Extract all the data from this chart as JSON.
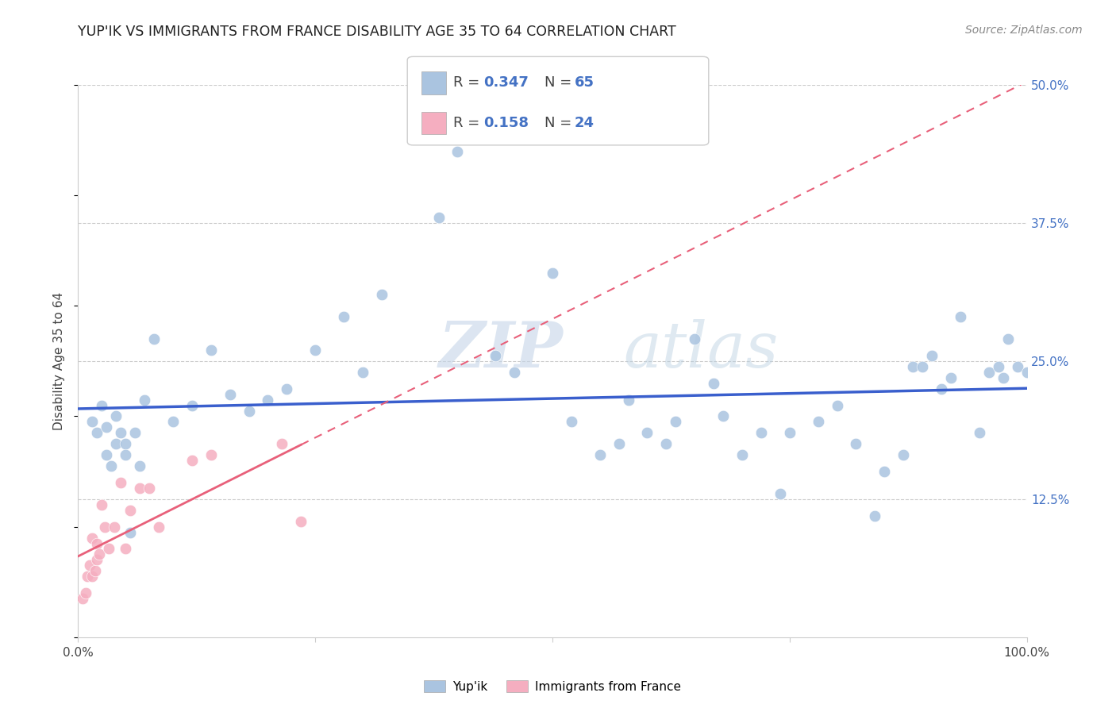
{
  "title": "YUP'IK VS IMMIGRANTS FROM FRANCE DISABILITY AGE 35 TO 64 CORRELATION CHART",
  "source": "Source: ZipAtlas.com",
  "ylabel": "Disability Age 35 to 64",
  "xlim": [
    0,
    1.0
  ],
  "ylim": [
    0,
    0.5
  ],
  "ytick_labels": [
    "12.5%",
    "25.0%",
    "37.5%",
    "50.0%"
  ],
  "ytick_values": [
    0.125,
    0.25,
    0.375,
    0.5
  ],
  "R_blue": "0.347",
  "N_blue": "65",
  "R_pink": "0.158",
  "N_pink": "24",
  "blue_color": "#aac4e0",
  "pink_color": "#f5aec0",
  "line_blue": "#3a5fcd",
  "line_pink": "#e8607a",
  "watermark_zip": "ZIP",
  "watermark_atlas": "atlas",
  "blue_x": [
    0.015,
    0.02,
    0.025,
    0.03,
    0.03,
    0.035,
    0.04,
    0.04,
    0.045,
    0.05,
    0.05,
    0.055,
    0.06,
    0.065,
    0.07,
    0.08,
    0.1,
    0.12,
    0.14,
    0.16,
    0.18,
    0.2,
    0.22,
    0.25,
    0.28,
    0.3,
    0.32,
    0.38,
    0.4,
    0.44,
    0.46,
    0.5,
    0.52,
    0.55,
    0.57,
    0.58,
    0.6,
    0.62,
    0.63,
    0.65,
    0.67,
    0.68,
    0.7,
    0.72,
    0.74,
    0.75,
    0.78,
    0.8,
    0.82,
    0.84,
    0.85,
    0.87,
    0.88,
    0.89,
    0.9,
    0.91,
    0.92,
    0.93,
    0.95,
    0.96,
    0.97,
    0.975,
    0.98,
    0.99,
    1.0
  ],
  "blue_y": [
    0.195,
    0.185,
    0.21,
    0.19,
    0.165,
    0.155,
    0.175,
    0.2,
    0.185,
    0.175,
    0.165,
    0.095,
    0.185,
    0.155,
    0.215,
    0.27,
    0.195,
    0.21,
    0.26,
    0.22,
    0.205,
    0.215,
    0.225,
    0.26,
    0.29,
    0.24,
    0.31,
    0.38,
    0.44,
    0.255,
    0.24,
    0.33,
    0.195,
    0.165,
    0.175,
    0.215,
    0.185,
    0.175,
    0.195,
    0.27,
    0.23,
    0.2,
    0.165,
    0.185,
    0.13,
    0.185,
    0.195,
    0.21,
    0.175,
    0.11,
    0.15,
    0.165,
    0.245,
    0.245,
    0.255,
    0.225,
    0.235,
    0.29,
    0.185,
    0.24,
    0.245,
    0.235,
    0.27,
    0.245,
    0.24
  ],
  "pink_x": [
    0.005,
    0.008,
    0.01,
    0.012,
    0.015,
    0.015,
    0.018,
    0.02,
    0.02,
    0.022,
    0.025,
    0.028,
    0.032,
    0.038,
    0.045,
    0.05,
    0.055,
    0.065,
    0.075,
    0.085,
    0.12,
    0.14,
    0.215,
    0.235
  ],
  "pink_y": [
    0.035,
    0.04,
    0.055,
    0.065,
    0.055,
    0.09,
    0.06,
    0.07,
    0.085,
    0.075,
    0.12,
    0.1,
    0.08,
    0.1,
    0.14,
    0.08,
    0.115,
    0.135,
    0.135,
    0.1,
    0.16,
    0.165,
    0.175,
    0.105
  ]
}
